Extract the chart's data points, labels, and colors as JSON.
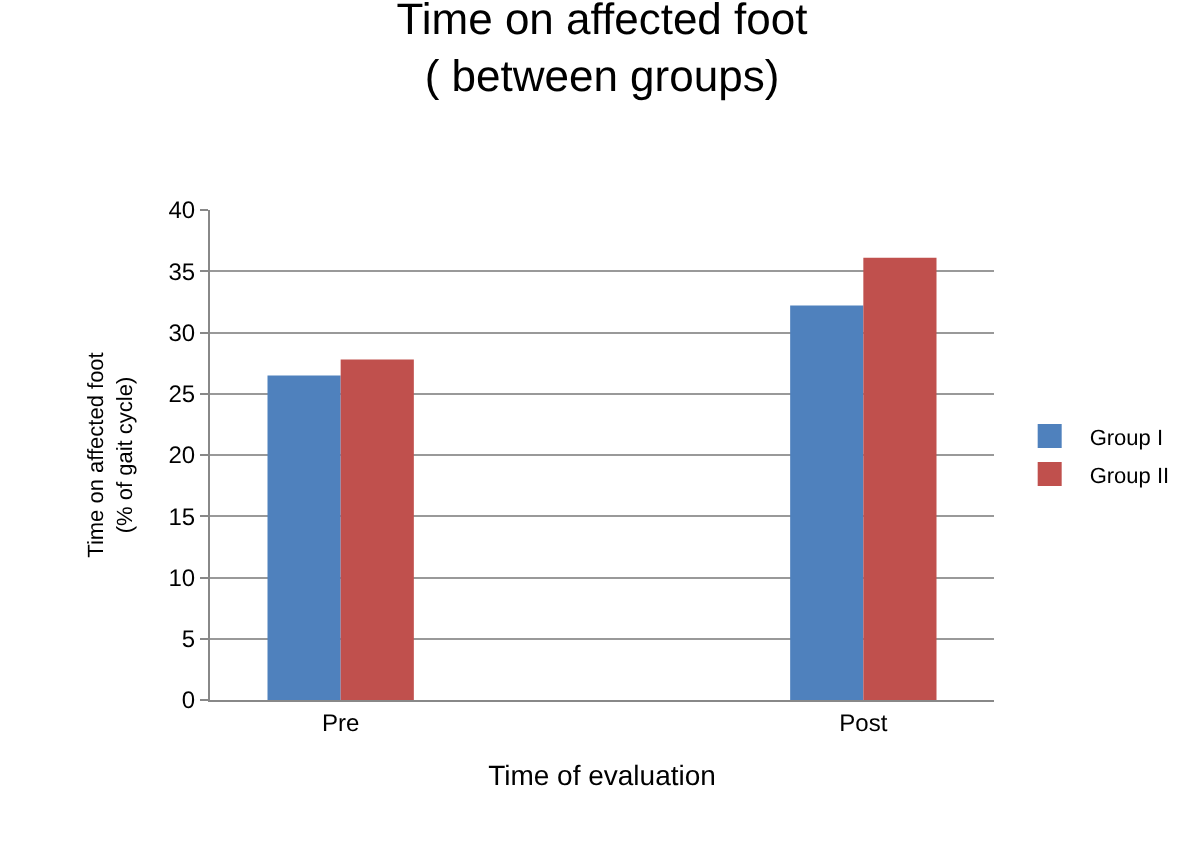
{
  "chart_data": {
    "type": "bar",
    "title": "Time on affected foot\n( between groups)",
    "xlabel": "Time of evaluation",
    "ylabel": "Time on affected foot\n(% of gait cycle)",
    "categories": [
      "Pre",
      null,
      "Post"
    ],
    "series": [
      {
        "name": "Group I",
        "color": "#4f81bd",
        "values": [
          26.5,
          null,
          32.2
        ]
      },
      {
        "name": "Group II",
        "color": "#c0504d",
        "values": [
          27.8,
          null,
          36.1
        ]
      }
    ],
    "ylim": [
      0,
      40
    ],
    "yticks": [
      0,
      5,
      10,
      15,
      20,
      25,
      30,
      35,
      40
    ],
    "grid": "y",
    "legend": "right"
  }
}
